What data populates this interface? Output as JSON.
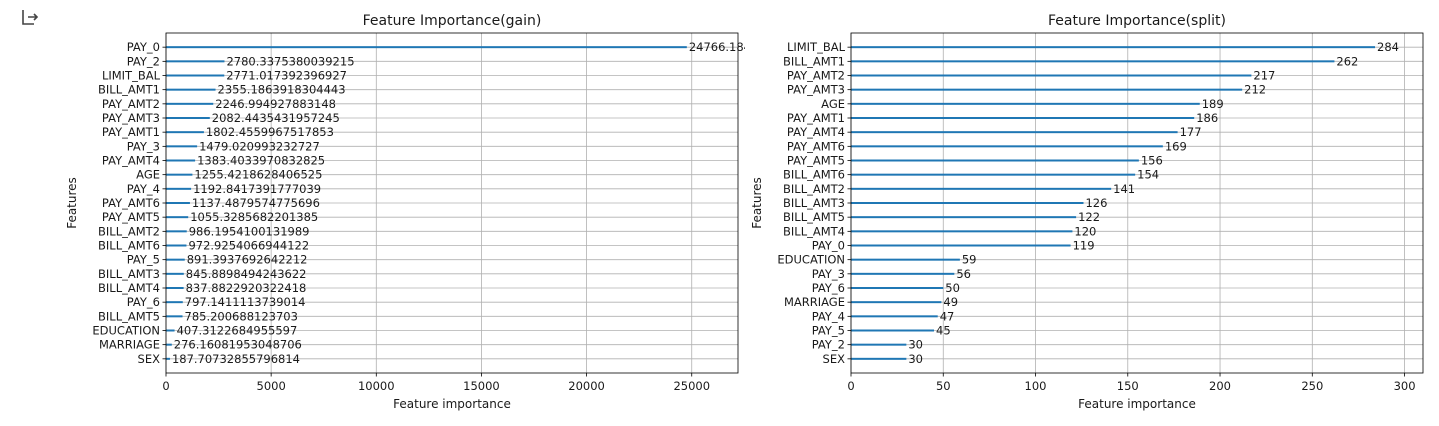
{
  "output_icon": "output-arrow-icon",
  "chart_data": [
    {
      "type": "bar",
      "orientation": "horizontal",
      "title": "Feature Importance(gain)",
      "xlabel": "Feature importance",
      "ylabel": "Features",
      "xlim": [
        0,
        27200
      ],
      "xticks": [
        0,
        5000,
        10000,
        15000,
        20000,
        25000
      ],
      "grid": true,
      "bar_color": "#1f77b4",
      "categories": [
        "PAY_0",
        "PAY_2",
        "LIMIT_BAL",
        "BILL_AMT1",
        "PAY_AMT2",
        "PAY_AMT3",
        "PAY_AMT1",
        "PAY_3",
        "PAY_AMT4",
        "AGE",
        "PAY_4",
        "PAY_AMT6",
        "PAY_AMT5",
        "BILL_AMT2",
        "BILL_AMT6",
        "PAY_5",
        "BILL_AMT3",
        "BILL_AMT4",
        "PAY_6",
        "BILL_AMT5",
        "EDUCATION",
        "MARRIAGE",
        "SEX"
      ],
      "values": [
        24766.184275620137,
        2780.3375380039215,
        2771.017392396927,
        2355.1863918304443,
        2246.994927883148,
        2082.4435431957245,
        1802.4559967517853,
        1479.020993232727,
        1383.4033970832825,
        1255.4218628406525,
        1192.8417391777039,
        1137.4879574775696,
        1055.3285682201385,
        986.1954100131989,
        972.9254066944122,
        891.3937692642212,
        845.8898494243622,
        837.8822920322418,
        797.1411113739014,
        785.200688123703,
        407.3122684955597,
        276.16081953048706,
        187.70732855796814
      ],
      "value_labels": [
        "24766.184275620136",
        "2780.3375380039215",
        "2771.017392396927",
        "2355.1863918304443",
        "2246.994927883148",
        "2082.4435431957245",
        "1802.4559967517853",
        "1479.020993232727",
        "1383.4033970832825",
        "1255.4218628406525",
        "1192.8417391777039",
        "1137.4879574775696",
        "1055.3285682201385",
        "986.1954100131989",
        "972.9254066944122",
        "891.3937692642212",
        "845.8898494243622",
        "837.8822920322418",
        "797.1411113739014",
        "785.200688123703",
        "407.3122684955597",
        "276.16081953048706",
        "187.70732855796814"
      ]
    },
    {
      "type": "bar",
      "orientation": "horizontal",
      "title": "Feature Importance(split)",
      "xlabel": "Feature importance",
      "ylabel": "Features",
      "xlim": [
        0,
        310
      ],
      "xticks": [
        0,
        50,
        100,
        150,
        200,
        250,
        300
      ],
      "grid": true,
      "bar_color": "#1f77b4",
      "categories": [
        "LIMIT_BAL",
        "BILL_AMT1",
        "PAY_AMT2",
        "PAY_AMT3",
        "AGE",
        "PAY_AMT1",
        "PAY_AMT4",
        "PAY_AMT6",
        "PAY_AMT5",
        "BILL_AMT6",
        "BILL_AMT2",
        "BILL_AMT3",
        "BILL_AMT5",
        "BILL_AMT4",
        "PAY_0",
        "EDUCATION",
        "PAY_3",
        "PAY_6",
        "MARRIAGE",
        "PAY_4",
        "PAY_5",
        "PAY_2",
        "SEX"
      ],
      "values": [
        284,
        262,
        217,
        212,
        189,
        186,
        177,
        169,
        156,
        154,
        141,
        126,
        122,
        120,
        119,
        59,
        56,
        50,
        49,
        47,
        45,
        30,
        30
      ],
      "value_labels": [
        "284",
        "262",
        "217",
        "212",
        "189",
        "186",
        "177",
        "169",
        "156",
        "154",
        "141",
        "126",
        "122",
        "120",
        "119",
        "59",
        "56",
        "50",
        "49",
        "47",
        "45",
        "30",
        "30"
      ]
    }
  ]
}
